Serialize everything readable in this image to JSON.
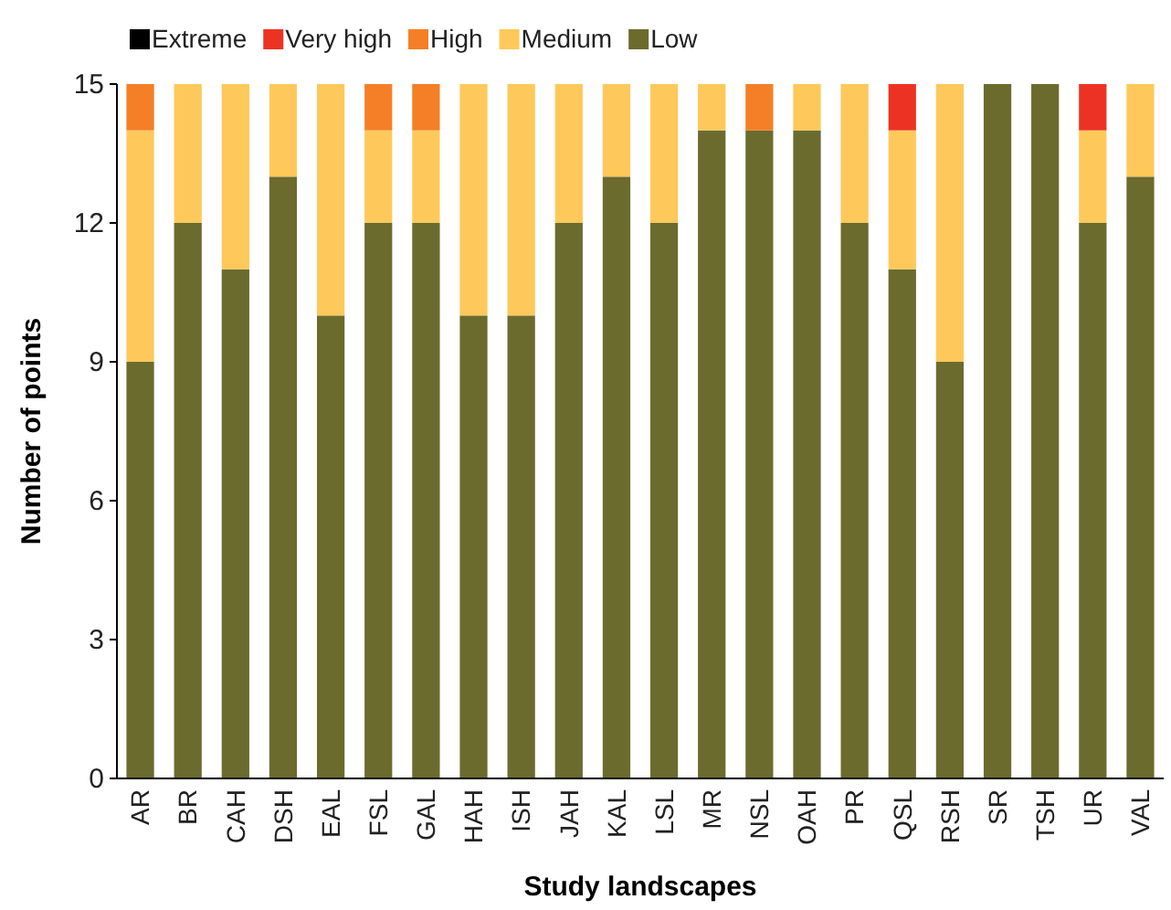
{
  "chart_data": {
    "type": "bar",
    "stacked": true,
    "xlabel": "Study landscapes",
    "ylabel": "Number of points",
    "categories": [
      "AR",
      "BR",
      "CAH",
      "DSH",
      "EAL",
      "FSL",
      "GAL",
      "HAH",
      "ISH",
      "JAH",
      "KAL",
      "LSL",
      "MR",
      "NSL",
      "OAH",
      "PR",
      "QSL",
      "RSH",
      "SR",
      "TSH",
      "UR",
      "VAL"
    ],
    "series": [
      {
        "name": "Low",
        "color": "#6b6b2e",
        "values": [
          9,
          12,
          11,
          13,
          10,
          12,
          12,
          10,
          10,
          12,
          13,
          12,
          14,
          14,
          14,
          12,
          11,
          9,
          15,
          15,
          12,
          13
        ]
      },
      {
        "name": "Medium",
        "color": "#fec95a",
        "values": [
          5,
          3,
          4,
          2,
          5,
          2,
          2,
          5,
          5,
          3,
          2,
          3,
          1,
          0,
          1,
          3,
          3,
          6,
          0,
          0,
          2,
          2
        ]
      },
      {
        "name": "High",
        "color": "#f47f26",
        "values": [
          1,
          0,
          0,
          0,
          0,
          1,
          1,
          0,
          0,
          0,
          0,
          0,
          0,
          1,
          0,
          0,
          0,
          0,
          0,
          0,
          0,
          0
        ]
      },
      {
        "name": "Very high",
        "color": "#ec3323",
        "values": [
          0,
          0,
          0,
          0,
          0,
          0,
          0,
          0,
          0,
          0,
          0,
          0,
          0,
          0,
          0,
          0,
          1,
          0,
          0,
          0,
          1,
          0
        ]
      },
      {
        "name": "Extreme",
        "color": "#000000",
        "values": [
          0,
          0,
          0,
          0,
          0,
          0,
          0,
          0,
          0,
          0,
          0,
          0,
          0,
          0,
          0,
          0,
          0,
          0,
          0,
          0,
          0,
          0
        ]
      }
    ],
    "ylim": [
      0,
      15
    ],
    "yticks": [
      0,
      3,
      6,
      9,
      12,
      15
    ],
    "legend": "top left",
    "grid": false
  }
}
